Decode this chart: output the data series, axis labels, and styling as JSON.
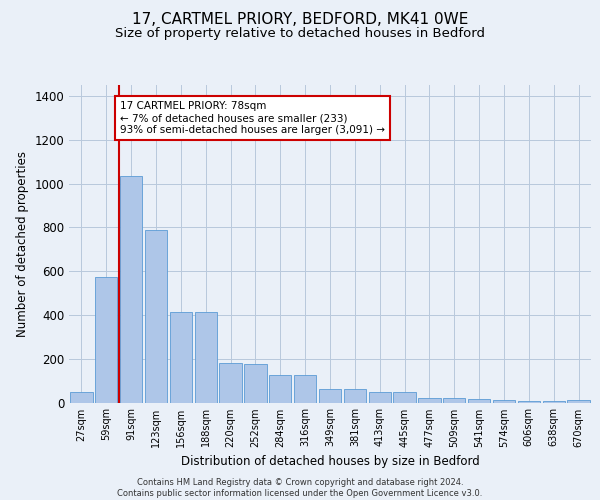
{
  "title1": "17, CARTMEL PRIORY, BEDFORD, MK41 0WE",
  "title2": "Size of property relative to detached houses in Bedford",
  "xlabel": "Distribution of detached houses by size in Bedford",
  "ylabel": "Number of detached properties",
  "bar_labels": [
    "27sqm",
    "59sqm",
    "91sqm",
    "123sqm",
    "156sqm",
    "188sqm",
    "220sqm",
    "252sqm",
    "284sqm",
    "316sqm",
    "349sqm",
    "381sqm",
    "413sqm",
    "445sqm",
    "477sqm",
    "509sqm",
    "541sqm",
    "574sqm",
    "606sqm",
    "638sqm",
    "670sqm"
  ],
  "bar_values": [
    47,
    572,
    1036,
    790,
    415,
    415,
    180,
    175,
    125,
    125,
    62,
    62,
    47,
    47,
    22,
    22,
    14,
    12,
    8,
    8,
    10
  ],
  "bar_color": "#aec6e8",
  "bar_edge_color": "#5b9bd5",
  "property_line_x": 1.5,
  "annotation_text": "17 CARTMEL PRIORY: 78sqm\n← 7% of detached houses are smaller (233)\n93% of semi-detached houses are larger (3,091) →",
  "vline_color": "#cc0000",
  "annotation_box_color": "#ffffff",
  "annotation_box_edge": "#cc0000",
  "ylim": [
    0,
    1450
  ],
  "yticks": [
    0,
    200,
    400,
    600,
    800,
    1000,
    1200,
    1400
  ],
  "bg_color": "#eaf0f8",
  "plot_bg_color": "#eaf0f8",
  "footer": "Contains HM Land Registry data © Crown copyright and database right 2024.\nContains public sector information licensed under the Open Government Licence v3.0.",
  "title1_fontsize": 11,
  "title2_fontsize": 9.5
}
